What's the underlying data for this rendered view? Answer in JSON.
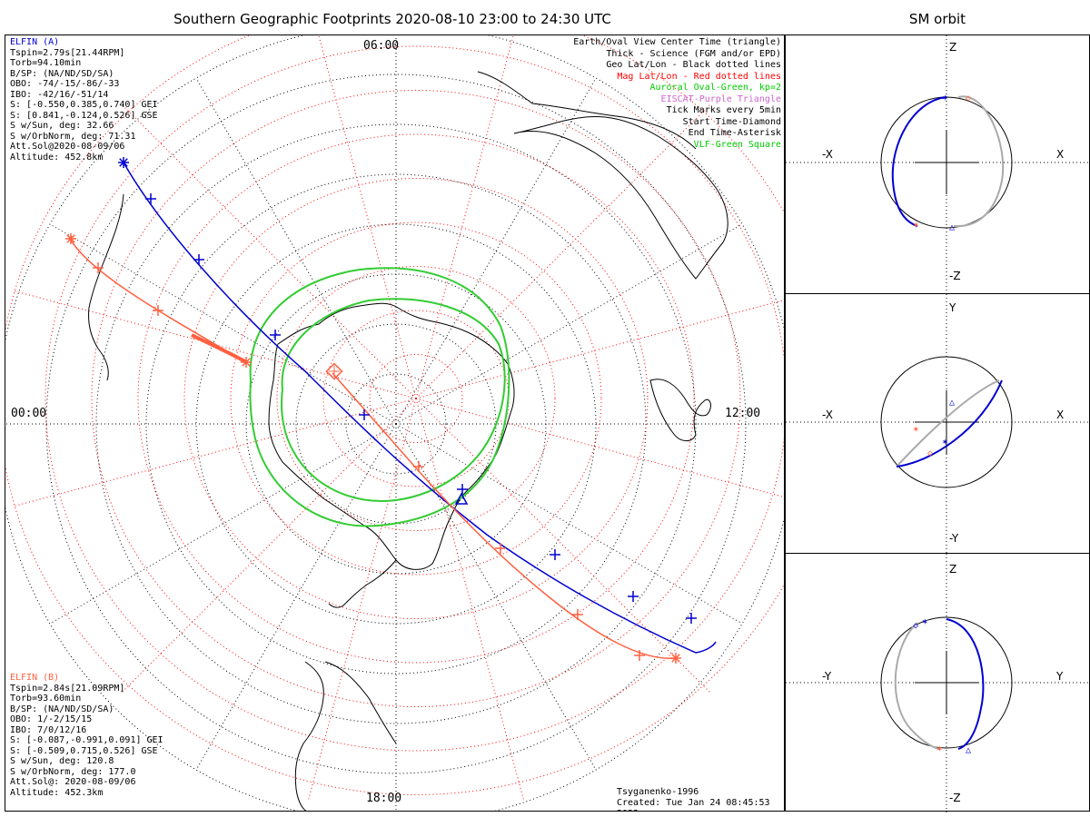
{
  "title": "Southern Geographic Footprints 2020-08-10 23:00 to 24:30 UTC",
  "sm_title": "SM orbit",
  "time_labels": {
    "top": "06:00",
    "left": "00:00",
    "right": "12:00",
    "bottom": "18:00"
  },
  "elfin_a": {
    "color": "#0000d0",
    "name": "ELFIN (A)",
    "lines": [
      "Tspin=2.79s[21.44RPM]",
      "Torb=94.10min",
      "B/SP: (NA/ND/SD/SA)",
      "OBO: -74/-15/-86/-33",
      "IBO: -42/16/-51/14",
      "S: [-0.550,0.385,0.740] GEI",
      "S: [0.841,-0.124,0.526] GSE",
      "S w/Sun, deg: 32.66",
      "S w/OrbNorm, deg: 71.31",
      "Att.Sol@2020-08-09/06",
      "Altitude: 452.8km"
    ]
  },
  "elfin_b": {
    "color": "#ff6040",
    "name": "ELFIN (B)",
    "lines": [
      "Tspin=2.84s[21.09RPM]",
      "Torb=93.60min",
      "B/SP: (NA/ND/SD/SA)",
      "OBO: 1/-2/15/15",
      "IBO: 7/0/12/16",
      "S: [-0.087,-0.991,0.091] GEI",
      "S: [-0.509,0.715,0.526] GSE",
      "S w/Sun, deg: 120.8",
      "S w/OrbNorm, deg: 177.0",
      "Att.Sol@: 2020-08-09/06",
      "Altitude: 452.3km"
    ]
  },
  "legend": [
    {
      "text": "Earth/Oval View Center Time (triangle)",
      "color": "#000000"
    },
    {
      "text": "Thick - Science (FGM and/or EPD)",
      "color": "#000000"
    },
    {
      "text": "Geo Lat/Lon - Black dotted lines",
      "color": "#000000"
    },
    {
      "text": "Mag Lat/Lon - Red dotted lines",
      "color": "#ff0000"
    },
    {
      "text": "Auroral Oval-Green, kp=2",
      "color": "#00cc00"
    },
    {
      "text": "EISCAT-Purple Triangle",
      "color": "#cc66cc"
    },
    {
      "text": "Tick Marks every 5min",
      "color": "#000000"
    },
    {
      "text": "Start Time-Diamond",
      "color": "#000000"
    },
    {
      "text": "End Time-Asterisk",
      "color": "#000000"
    },
    {
      "text": "VLF-Green Square",
      "color": "#00cc00"
    }
  ],
  "credits": [
    "Tsyganenko-1996",
    "Created: Tue Jan 24 08:45:53 2023"
  ],
  "panels": [
    {
      "top": "Z",
      "bottom": "-Z",
      "left": "-X",
      "right": "X"
    },
    {
      "top": "Y",
      "bottom": "-Y",
      "left": "-X",
      "right": "X"
    },
    {
      "top": "Z",
      "bottom": "-Z",
      "left": "-Y",
      "right": "Y"
    }
  ],
  "colors": {
    "auroral_oval": "#33cc33",
    "mag_grid": "#ff0000",
    "geo_grid": "#000000",
    "orbit_gray": "#aaaaaa"
  }
}
